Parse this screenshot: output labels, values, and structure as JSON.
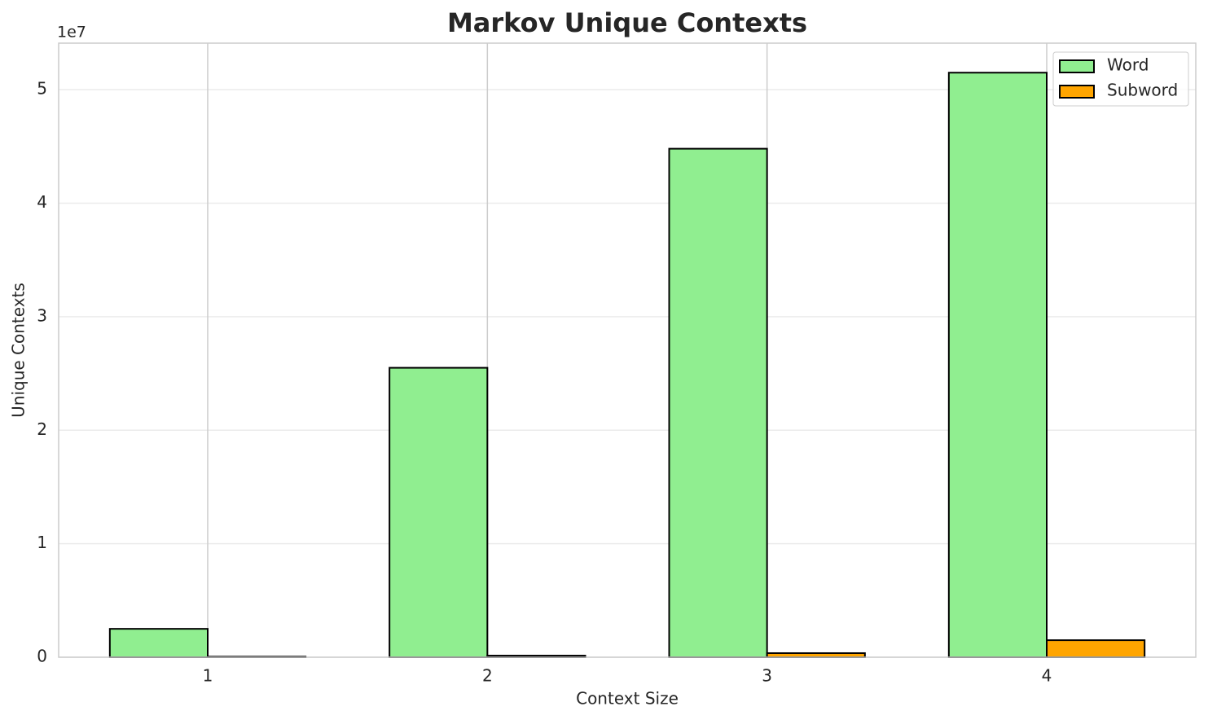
{
  "chart_data": {
    "type": "bar",
    "title": "Markov Unique Contexts",
    "x_label": "Context Size",
    "y_label": "Unique Contexts",
    "y_offset_label": "1e7",
    "categories": [
      "1",
      "2",
      "3",
      "4"
    ],
    "series": [
      {
        "name": "Word",
        "color": "#90ee90",
        "values": [
          0.25,
          2.55,
          4.48,
          5.15
        ]
      },
      {
        "name": "Subword",
        "color": "#ffa500",
        "values": [
          0.005,
          0.014,
          0.036,
          0.15
        ]
      }
    ],
    "ylim": [
      0,
      5.41
    ],
    "yticks": [
      0,
      1,
      2,
      3,
      4,
      5
    ],
    "grid": true,
    "legend": "upper right"
  }
}
